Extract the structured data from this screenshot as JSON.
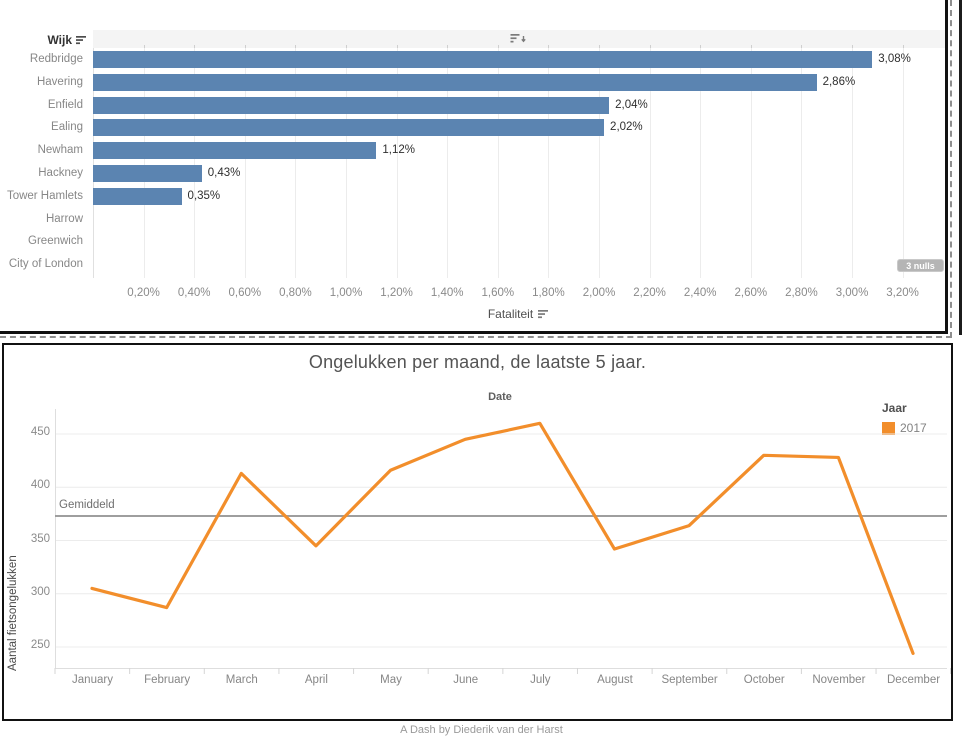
{
  "colors": {
    "bar": "#5b84b1",
    "line": "#f28e2b",
    "grid": "#ececec",
    "axis_line": "#dedede",
    "reference_line": "#9e9e9e",
    "badge_bg": "#b5b5b5"
  },
  "chart_data": [
    {
      "type": "bar",
      "orientation": "horizontal",
      "category_axis_label": "Wijk",
      "value_axis_label": "Fataliteit",
      "categories": [
        "Redbridge",
        "Havering",
        "Enfield",
        "Ealing",
        "Newham",
        "Hackney",
        "Tower Hamlets",
        "Harrow",
        "Greenwich",
        "City of London"
      ],
      "values": [
        3.08,
        2.86,
        2.04,
        2.02,
        1.12,
        0.43,
        0.35,
        null,
        null,
        null
      ],
      "value_labels": [
        "3,08%",
        "2,86%",
        "2,04%",
        "2,02%",
        "1,12%",
        "0,43%",
        "0,35%",
        "",
        "",
        ""
      ],
      "x_ticks": [
        "0,20%",
        "0,40%",
        "0,60%",
        "0,80%",
        "1,00%",
        "1,20%",
        "1,40%",
        "1,60%",
        "1,80%",
        "2,00%",
        "2,20%",
        "2,40%",
        "2,60%",
        "2,80%",
        "3,00%",
        "3,20%"
      ],
      "x_tick_values": [
        0.2,
        0.4,
        0.6,
        0.8,
        1.0,
        1.2,
        1.4,
        1.6,
        1.8,
        2.0,
        2.2,
        2.4,
        2.6,
        2.8,
        3.0,
        3.2
      ],
      "xlim": [
        0,
        3.37
      ],
      "nulls_badge": "3 nulls",
      "grid": "vertical"
    },
    {
      "type": "line",
      "title": "Ongelukken per maand, de laatste 5 jaar.",
      "xlabel": "Date",
      "ylabel": "Aantal fietsongelukken",
      "categories": [
        "January",
        "February",
        "March",
        "April",
        "May",
        "June",
        "July",
        "August",
        "September",
        "October",
        "November",
        "December"
      ],
      "series": [
        {
          "name": "2017",
          "color": "#f28e2b",
          "values": [
            305,
            287,
            413,
            345,
            416,
            445,
            460,
            342,
            364,
            430,
            428,
            244
          ]
        }
      ],
      "reference_line": {
        "label": "Gemiddeld",
        "value": 373
      },
      "y_ticks": [
        450,
        400,
        350,
        300,
        250
      ],
      "ylim": [
        233,
        472
      ],
      "legend": {
        "title": "Jaar",
        "entries": [
          "2017"
        ],
        "position": "top-right"
      },
      "grid": "horizontal"
    }
  ],
  "footer": {
    "credit": "A Dash by Diederik van der Harst"
  }
}
